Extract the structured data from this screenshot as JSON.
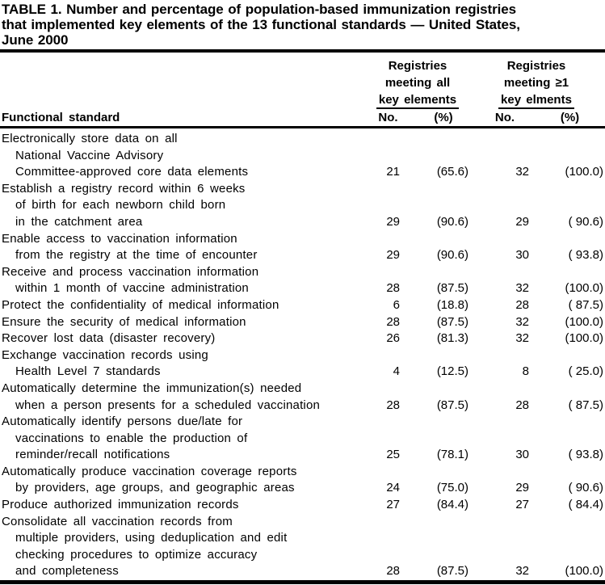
{
  "title": {
    "lines": [
      "TABLE 1. Number and percentage of population-based immunization registries",
      "that implemented key elements of the 13 functional standards — United States,",
      "June 2000"
    ]
  },
  "header": {
    "functional_standard": "Functional standard",
    "group_all": {
      "line1": "Registries",
      "line2": "meeting all",
      "line3": "key elements",
      "no": "No.",
      "pct": "(%)"
    },
    "group_one": {
      "line1": "Registries",
      "line2": "meeting ≥1",
      "line3": "key elments",
      "no": "No.",
      "pct": "(%)"
    }
  },
  "rows": [
    {
      "lines": [
        "Electronically store data on all",
        "National Vaccine Advisory",
        "Committee-approved core data elements"
      ],
      "no_all": "21",
      "pct_all": "(65.6)",
      "no_one": "32",
      "pct_one": "(100.0)"
    },
    {
      "lines": [
        "Establish a registry record within 6 weeks",
        "of birth for each newborn child born",
        "in the catchment area"
      ],
      "no_all": "29",
      "pct_all": "(90.6)",
      "no_one": "29",
      "pct_one": "( 90.6)"
    },
    {
      "lines": [
        "Enable access to vaccination information",
        "from the registry at the time of encounter"
      ],
      "no_all": "29",
      "pct_all": "(90.6)",
      "no_one": "30",
      "pct_one": "( 93.8)"
    },
    {
      "lines": [
        "Receive and process vaccination information",
        "within 1 month of vaccine administration"
      ],
      "no_all": "28",
      "pct_all": "(87.5)",
      "no_one": "32",
      "pct_one": "(100.0)"
    },
    {
      "lines": [
        "Protect the confidentiality of medical information"
      ],
      "no_all": "6",
      "pct_all": "(18.8)",
      "no_one": "28",
      "pct_one": "( 87.5)"
    },
    {
      "lines": [
        "Ensure the security of medical information"
      ],
      "no_all": "28",
      "pct_all": "(87.5)",
      "no_one": "32",
      "pct_one": "(100.0)"
    },
    {
      "lines": [
        "Recover lost data (disaster recovery)"
      ],
      "no_all": "26",
      "pct_all": "(81.3)",
      "no_one": "32",
      "pct_one": "(100.0)"
    },
    {
      "lines": [
        "Exchange vaccination records using",
        "Health Level 7 standards"
      ],
      "no_all": "4",
      "pct_all": "(12.5)",
      "no_one": "8",
      "pct_one": "( 25.0)"
    },
    {
      "lines": [
        "Automatically determine the immunization(s) needed",
        "when a person presents for a scheduled vaccination"
      ],
      "no_all": "28",
      "pct_all": "(87.5)",
      "no_one": "28",
      "pct_one": "( 87.5)"
    },
    {
      "lines": [
        "Automatically identify persons due/late for",
        "vaccinations to enable the production of",
        "reminder/recall notifications"
      ],
      "no_all": "25",
      "pct_all": "(78.1)",
      "no_one": "30",
      "pct_one": "( 93.8)"
    },
    {
      "lines": [
        "Automatically produce vaccination coverage reports",
        "by providers, age groups, and geographic areas"
      ],
      "no_all": "24",
      "pct_all": "(75.0)",
      "no_one": "29",
      "pct_one": "( 90.6)"
    },
    {
      "lines": [
        "Produce authorized immunization records"
      ],
      "no_all": "27",
      "pct_all": "(84.4)",
      "no_one": "27",
      "pct_one": "( 84.4)"
    },
    {
      "lines": [
        "Consolidate all vaccination records from",
        "multiple providers, using deduplication and edit",
        "checking procedures to optimize accuracy",
        "and completeness"
      ],
      "no_all": "28",
      "pct_all": "(87.5)",
      "no_one": "32",
      "pct_one": "(100.0)"
    }
  ],
  "colors": {
    "text": "#000000",
    "background": "#ffffff",
    "rule": "#000000"
  }
}
